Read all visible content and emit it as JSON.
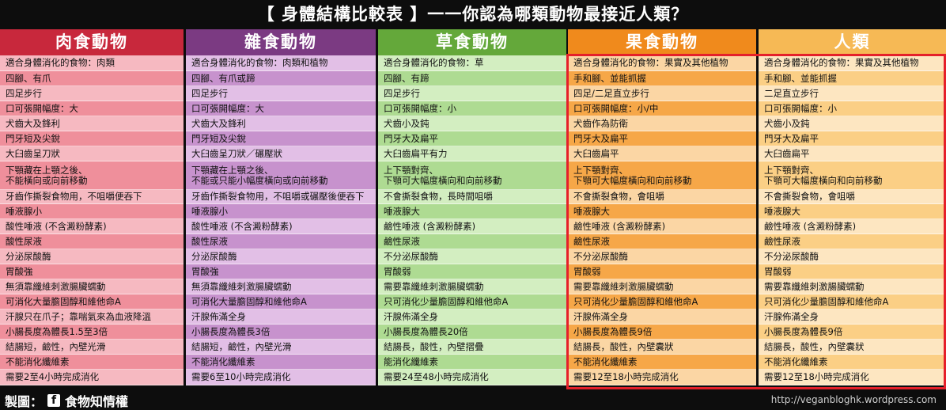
{
  "title": "【 身體結構比較表 】一一你認為哪類動物最接近人類？",
  "footer": {
    "credit_prefix": "製圖：",
    "credit_icon": "facebook-icon",
    "credit_name": "食物知情權",
    "site": "http://veganbloghk.wordpress.com"
  },
  "highlight_color": "#e5202a",
  "columns": [
    {
      "header": "肉食動物",
      "header_color": "#c8283c",
      "colors": [
        "#f6b9c1",
        "#ef8f9b"
      ],
      "rows": [
        "適合身體消化的食物：肉類",
        "四腳、有爪",
        "四足步行",
        "口可張開幅度：大",
        "犬齒大及鋒利",
        "門牙短及尖銳",
        "大臼齒呈刀狀",
        "下顎藏在上顎之後、\n不能橫向或向前移動",
        "牙齒作撕裂食物用，不咀嚼便吞下",
        "唾液腺小",
        "酸性唾液 (不含澱粉酵素)",
        "酸性尿液",
        "分泌尿酸酶",
        "胃酸強",
        "無須靠纖維刺激腸臟蠕動",
        "可消化大量膽固醇和維他命A",
        "汗腺只在爪子；靠喘氣來為血液降溫",
        "小腸長度為體長1.5至3倍",
        "結腸短，鹼性，內壁光滑",
        "不能消化纖維素",
        "需要2至4小時完成消化"
      ]
    },
    {
      "header": "雜食動物",
      "header_color": "#7b3a82",
      "colors": [
        "#e2bfe6",
        "#c792cd"
      ],
      "rows": [
        "適合身體消化的食物：肉類和植物",
        "四腳、有爪或蹄",
        "四足步行",
        "口可張開幅度：大",
        "犬齒大及鋒利",
        "門牙短及尖銳",
        "大臼齒呈刀狀／碾壓狀",
        "下顎藏在上顎之後、\n不能或只能小幅度橫向或向前移動",
        "牙齒作撕裂食物用，不咀嚼或碾壓後便吞下",
        "唾液腺小",
        "酸性唾液 (不含澱粉酵素)",
        "酸性尿液",
        "分泌尿酸酶",
        "胃酸強",
        "無須靠纖維刺激腸臟蠕動",
        "可消化大量膽固醇和維他命A",
        "汗腺佈滿全身",
        "小腸長度為體長3倍",
        "結腸短，鹼性，內壁光滑",
        "不能消化纖維素",
        "需要6至10小時完成消化"
      ]
    },
    {
      "header": "草食動物",
      "header_color": "#64a83a",
      "colors": [
        "#d3eec1",
        "#aedb92"
      ],
      "rows": [
        "適合身體消化的食物：草",
        "四腳、有蹄",
        "四足步行",
        "口可張開幅度：小",
        "犬齒小及鈍",
        "門牙大及扁平",
        "大臼齒扁平有力",
        "上下顎對齊、\n下顎可大幅度橫向和向前移動",
        "不會撕裂食物，長時間咀嚼",
        "唾液腺大",
        "鹼性唾液 (含澱粉酵素)",
        "鹼性尿液",
        "不分泌尿酸酶",
        "胃酸弱",
        "需要靠纖維刺激腸臟蠕動",
        "只可消化少量膽固醇和維他命A",
        "汗腺佈滿全身",
        "小腸長度為體長20倍",
        "結腸長，酸性，內壁摺疊",
        "能消化纖維素",
        "需要24至48小時完成消化"
      ]
    },
    {
      "header": "果食動物",
      "header_color": "#f08a1c",
      "colors": [
        "#fbd6a4",
        "#f6a748"
      ],
      "rows": [
        "適合身體消化的食物：果實及其他植物",
        "手和腳、並能抓握",
        "四足/二足直立步行",
        "口可張開幅度：小/中",
        "犬齒作為防衛",
        "門牙大及扁平",
        "大臼齒扁平",
        "上下顎對齊、\n下顎可大幅度橫向和向前移動",
        "不會撕裂食物，會咀嚼",
        "唾液腺大",
        "鹼性唾液 (含澱粉酵素)",
        "鹼性尿液",
        "不分泌尿酸酶",
        "胃酸弱",
        "需要靠纖維刺激腸臟蠕動",
        "只可消化少量膽固醇和維他命A",
        "汗腺佈滿全身",
        "小腸長度為體長9倍",
        "結腸長，酸性，內壁囊狀",
        "不能消化纖維素",
        "需要12至18小時完成消化"
      ]
    },
    {
      "header": "人類",
      "header_color": "#f6b955",
      "colors": [
        "#fde6c1",
        "#fbcf85"
      ],
      "rows": [
        "適合身體消化的食物：果實及其他植物",
        "手和腳、並能抓握",
        "二足直立步行",
        "口可張開幅度：小",
        "犬齒小及鈍",
        "門牙大及扁平",
        "大臼齒扁平",
        "上下顎對齊、\n下顎可大幅度橫向和向前移動",
        "不會撕裂食物，會咀嚼",
        "唾液腺大",
        "鹼性唾液 (含澱粉酵素)",
        "鹼性尿液",
        "不分泌尿酸酶",
        "胃酸弱",
        "需要靠纖維刺激腸臟蠕動",
        "只可消化少量膽固醇和維他命A",
        "汗腺佈滿全身",
        "小腸長度為體長9倍",
        "結腸長，酸性，內壁囊狀",
        "不能消化纖維素",
        "需要12至18小時完成消化"
      ]
    }
  ]
}
